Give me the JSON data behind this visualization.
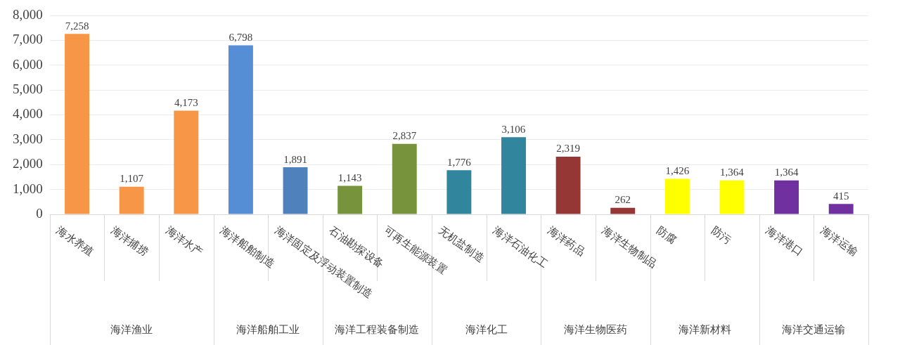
{
  "chart_data": {
    "type": "bar",
    "categories": [
      "海水养殖",
      "海洋捕捞",
      "海洋水产",
      "海洋船舶制造",
      "海洋固定及浮动装置制造",
      "石油勘探设备",
      "可再生能源装置",
      "无机盐制造",
      "海洋石油化工",
      "海洋药品",
      "海洋生物制品",
      "防腐",
      "防污",
      "海洋港口",
      "海洋运输"
    ],
    "values": [
      7258,
      1107,
      4173,
      6798,
      1891,
      1143,
      2837,
      1776,
      3106,
      2319,
      262,
      1426,
      1364,
      1364,
      415
    ],
    "colors": [
      "#f79646",
      "#f79646",
      "#f79646",
      "#558ed5",
      "#4f81bd",
      "#77933c",
      "#77933c",
      "#31859c",
      "#31859c",
      "#953735",
      "#953735",
      "#ffff00",
      "#ffff00",
      "#7030a0",
      "#7030a0"
    ],
    "value_labels": [
      "7,258",
      "1,107",
      "4,173",
      "6,798",
      "1,891",
      "1,143",
      "2,837",
      "1,776",
      "3,106",
      "2,319",
      "262",
      "1,426",
      "1,364",
      "1,364",
      "415"
    ],
    "ylim": [
      0,
      8000
    ],
    "yticks": [
      {
        "value": 0,
        "label": "0"
      },
      {
        "value": 1000,
        "label": "1,000"
      },
      {
        "value": 2000,
        "label": "2,000"
      },
      {
        "value": 3000,
        "label": "3,000"
      },
      {
        "value": 4000,
        "label": "4,000"
      },
      {
        "value": 5000,
        "label": "5,000"
      },
      {
        "value": 6000,
        "label": "6,000"
      },
      {
        "value": 7000,
        "label": "7,000"
      },
      {
        "value": 8000,
        "label": "8,000"
      }
    ],
    "grid": "y",
    "legend": false,
    "annotations": [
      "海洋渔业",
      "海洋船舶工业",
      "海洋工程装备制造",
      "海洋化工",
      "海洋生物医药",
      "海洋新材料",
      "海洋交通运输"
    ]
  }
}
